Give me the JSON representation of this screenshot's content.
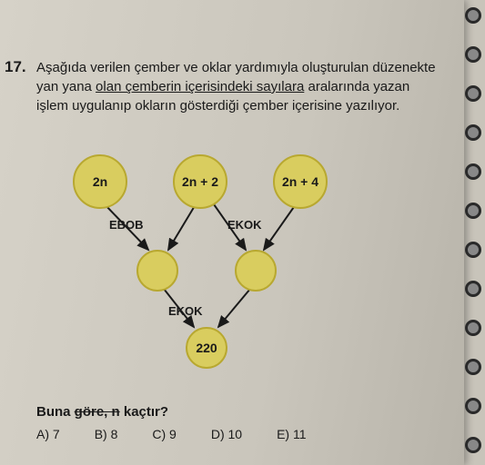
{
  "question_number": "17.",
  "question_text_parts": {
    "p1": "Aşağıda verilen çember ve oklar yardımıyla oluşturulan düzenekte yan yana ",
    "p2": "olan çemberin içerisindeki sayılara",
    "p3": " aralarında yazan işlem uygulanıp okların gösterdiği çember içerisine yazılıyor."
  },
  "diagram": {
    "top_circles": [
      "2n",
      "2n + 2",
      "2n + 4"
    ],
    "mid_labels": [
      "EBOB",
      "EKOK"
    ],
    "bottom_label": "EKOK",
    "result": "220",
    "circle_fill": "#d9cd5f",
    "circle_stroke": "#b8a830"
  },
  "buna": {
    "prefix": "Buna ",
    "strike": "göre, n",
    "suffix": " kaçtır?"
  },
  "answers": {
    "a": "A) 7",
    "b": "B) 8",
    "c": "C) 9",
    "d": "D) 10",
    "e": "E) 11"
  },
  "spiral": {
    "count": 12,
    "spacing": 43,
    "start": 8
  }
}
